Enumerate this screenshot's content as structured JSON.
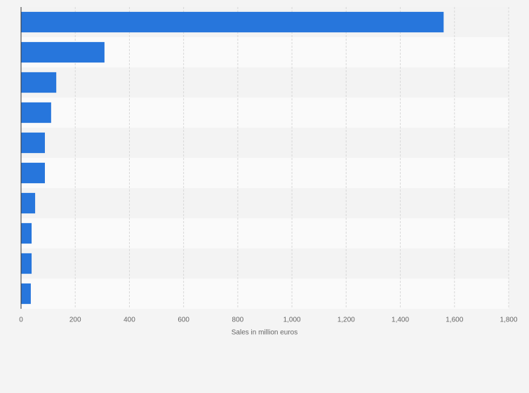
{
  "chart_data": {
    "type": "bar",
    "orientation": "horizontal",
    "x_label": "Sales in million euros",
    "values": [
      1560,
      308,
      130,
      111,
      88,
      88,
      52,
      39,
      39,
      36
    ],
    "color": "#2776dc",
    "xlim": [
      0,
      1800
    ],
    "xticks": [
      0,
      200,
      400,
      600,
      800,
      {
        "value": 1000,
        "label": "1,000"
      },
      {
        "value": 1200,
        "label": "1,200"
      },
      {
        "value": 1400,
        "label": "1,400"
      },
      {
        "value": 1600,
        "label": "1,600"
      },
      {
        "value": 1800,
        "label": "1,800"
      }
    ],
    "grid": true
  }
}
